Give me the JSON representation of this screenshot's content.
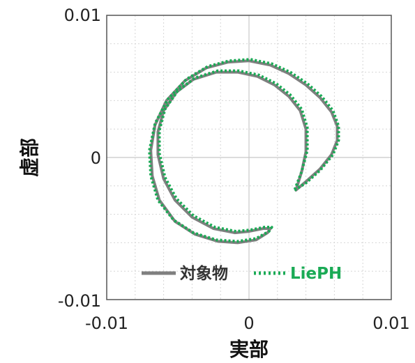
{
  "chart_data": {
    "type": "line",
    "title": "",
    "xlabel": "実部",
    "ylabel": "虚部",
    "xlim": [
      -0.01,
      0.01
    ],
    "ylim": [
      -0.01,
      0.01
    ],
    "x_ticks": [
      "-0.01",
      "0",
      "0.01"
    ],
    "y_ticks": [
      "-0.01",
      "0",
      "0.01"
    ],
    "grid": "on (dotted, 0.002 spacing)",
    "legend_position": "bottom",
    "colors": {
      "target": "#7f7f7f",
      "lieph": "#1aaa55"
    },
    "series": [
      {
        "name": "対象物",
        "style": "solid",
        "x": [
          0.0033,
          0.004,
          0.005,
          0.0058,
          0.0062,
          0.0062,
          0.0058,
          0.005,
          0.004,
          0.0028,
          0.0015,
          0.0,
          -0.0015,
          -0.003,
          -0.0045,
          -0.0058,
          -0.0066,
          -0.0069,
          -0.0068,
          -0.0063,
          -0.0052,
          -0.0038,
          -0.0022,
          -0.0008,
          0.0005,
          0.0013,
          0.0015,
          0.001,
          0.0,
          -0.001,
          -0.0025,
          -0.004,
          -0.0052,
          -0.006,
          -0.0064,
          -0.0064,
          -0.006,
          -0.0051,
          -0.0039,
          -0.0023,
          -0.0008,
          0.0006,
          0.0018,
          0.0028,
          0.0036,
          0.004,
          0.004,
          0.0037,
          0.0033
        ],
        "y": [
          -0.0023,
          -0.0017,
          -0.0008,
          0.0002,
          0.0012,
          0.0022,
          0.0032,
          0.0042,
          0.0051,
          0.0059,
          0.0065,
          0.0068,
          0.0067,
          0.0063,
          0.0054,
          0.004,
          0.0023,
          0.0005,
          -0.0013,
          -0.003,
          -0.0045,
          -0.0054,
          -0.0059,
          -0.006,
          -0.0058,
          -0.0053,
          -0.005,
          -0.005,
          -0.0052,
          -0.0053,
          -0.005,
          -0.0042,
          -0.003,
          -0.0015,
          0.0002,
          0.0018,
          0.0033,
          0.0046,
          0.0055,
          0.006,
          0.006,
          0.0057,
          0.0051,
          0.0043,
          0.0033,
          0.002,
          0.0004,
          -0.001,
          -0.0023
        ]
      },
      {
        "name": "LiePH",
        "style": "dotted",
        "x": [
          0.0032,
          0.004,
          0.005,
          0.0059,
          0.0063,
          0.0063,
          0.0059,
          0.0051,
          0.0041,
          0.0029,
          0.0016,
          0.0001,
          -0.0014,
          -0.0029,
          -0.0044,
          -0.0057,
          -0.0066,
          -0.007,
          -0.0069,
          -0.0064,
          -0.0053,
          -0.0039,
          -0.0023,
          -0.0008,
          0.0005,
          0.0014,
          0.0016,
          0.0011,
          0.0001,
          -0.0009,
          -0.0024,
          -0.0039,
          -0.0051,
          -0.0059,
          -0.0063,
          -0.0063,
          -0.0059,
          -0.005,
          -0.0038,
          -0.0022,
          -0.0007,
          0.0007,
          0.0019,
          0.0029,
          0.0037,
          0.0041,
          0.0041,
          0.0037,
          0.0032
        ],
        "y": [
          -0.0023,
          -0.0018,
          -0.0009,
          0.0002,
          0.0012,
          0.0022,
          0.0033,
          0.0043,
          0.0052,
          0.006,
          0.0066,
          0.0069,
          0.0068,
          0.0064,
          0.0055,
          0.0041,
          0.0024,
          0.0005,
          -0.0013,
          -0.003,
          -0.0044,
          -0.0053,
          -0.0058,
          -0.0059,
          -0.0057,
          -0.0052,
          -0.0049,
          -0.0049,
          -0.0051,
          -0.0052,
          -0.0049,
          -0.0041,
          -0.0029,
          -0.0014,
          0.0003,
          0.0019,
          0.0034,
          0.0047,
          0.0056,
          0.0061,
          0.0061,
          0.0058,
          0.0052,
          0.0044,
          0.0034,
          0.0021,
          0.0005,
          -0.001,
          -0.0023
        ]
      }
    ]
  }
}
